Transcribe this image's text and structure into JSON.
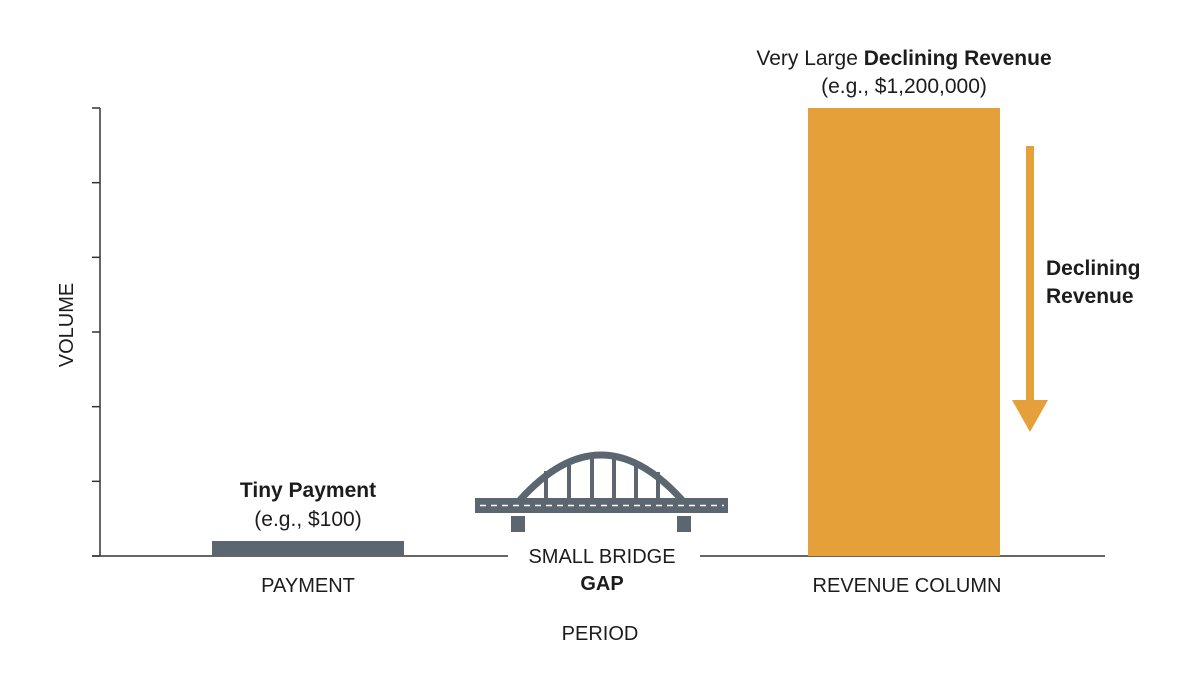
{
  "chart_data": {
    "type": "bar",
    "categories": [
      "PAYMENT",
      "REVENUE COLUMN"
    ],
    "values": [
      100,
      1200000
    ],
    "title": "",
    "xlabel": "PERIOD",
    "ylabel": "VOLUME",
    "ylim": [
      0,
      1200000
    ],
    "grid": false,
    "bar_colors": [
      "#5b6670",
      "#e5a03a"
    ],
    "annotations": {
      "payment": {
        "bold": "Tiny Payment",
        "sub": "(e.g., $100)"
      },
      "revenue": {
        "prefix": "Very Large ",
        "bold": "Declining Revenue",
        "sub": "(e.g., $1,200,000)"
      },
      "arrow": {
        "line1": "Declining",
        "line2": "Revenue",
        "color": "#e5a03a"
      },
      "gap": {
        "line1": "SMALL BRIDGE",
        "line2": "GAP",
        "icon": "bridge-icon",
        "color": "#5b6670"
      }
    }
  }
}
